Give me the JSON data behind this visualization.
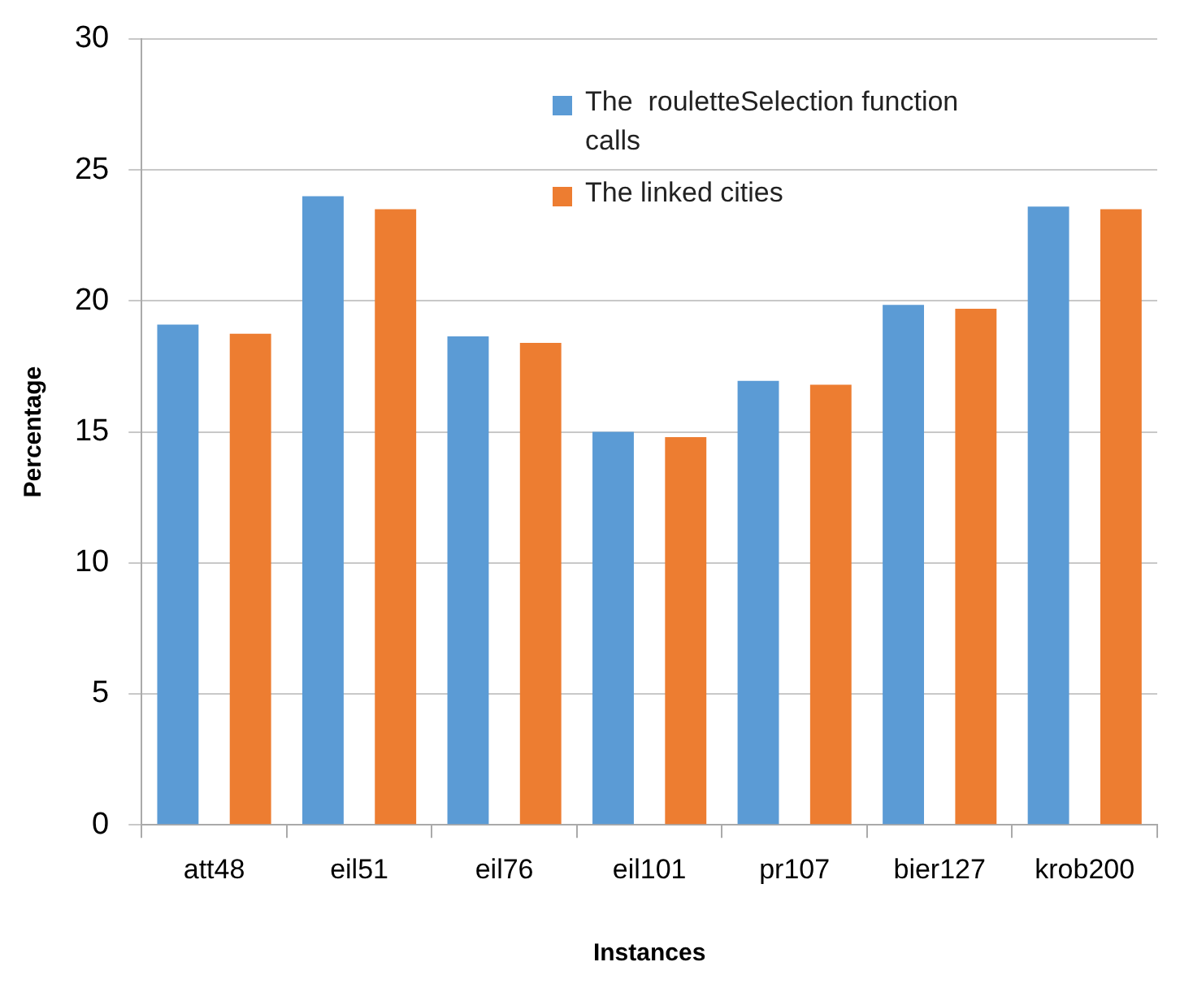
{
  "chart_data": {
    "type": "bar",
    "xlabel": "Instances",
    "ylabel": "Percentage",
    "categories": [
      "att48",
      "eil51",
      "eil76",
      "eil101",
      "pr107",
      "bier127",
      "krob200"
    ],
    "series": [
      {
        "name": "The  rouletteSelection function calls",
        "color": "#5b9bd5",
        "values": [
          19.1,
          24.0,
          18.65,
          15.0,
          16.95,
          19.85,
          23.6
        ]
      },
      {
        "name": "The linked cities",
        "color": "#ed7d31",
        "values": [
          18.75,
          23.5,
          18.4,
          14.8,
          16.8,
          19.7,
          23.5
        ]
      }
    ],
    "ylim": [
      0,
      30
    ],
    "yticks": [
      0,
      5,
      10,
      15,
      20,
      25,
      30
    ],
    "grid": "y",
    "legend": "top right"
  }
}
